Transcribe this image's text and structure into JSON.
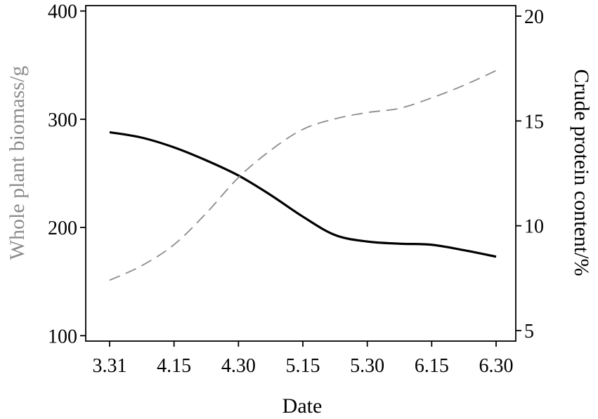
{
  "chart_data": {
    "type": "line",
    "xlabel": "Date",
    "ylabel_left": "Whole plant biomass/g",
    "ylabel_right": "Crude protein content/%",
    "categories": [
      "3.31",
      "4.15",
      "4.30",
      "5.15",
      "5.30",
      "6.15",
      "6.30"
    ],
    "y_left": {
      "range": [
        95,
        405
      ],
      "ticks": [
        100,
        200,
        300,
        400
      ]
    },
    "y_right": {
      "range": [
        4.5,
        20.5
      ],
      "ticks": [
        5,
        10,
        15,
        20
      ]
    },
    "grid": false,
    "series": [
      {
        "axis": "left",
        "style": "solid",
        "color": "#000000",
        "x": [
          0,
          0.5,
          1,
          1.5,
          2,
          2.5,
          3,
          3.5,
          4,
          4.5,
          5,
          5.5,
          6
        ],
        "values": [
          288,
          283,
          274,
          262,
          248,
          230,
          210,
          193,
          187,
          185,
          184,
          179,
          173
        ]
      },
      {
        "axis": "right",
        "style": "dashed",
        "color": "#8c8c8c",
        "x": [
          0,
          0.5,
          1,
          1.5,
          2,
          2.5,
          3,
          3.5,
          4,
          4.5,
          5,
          5.5,
          6
        ],
        "values": [
          7.4,
          8.1,
          9.1,
          10.6,
          12.3,
          13.6,
          14.6,
          15.1,
          15.4,
          15.6,
          16.1,
          16.7,
          17.4
        ]
      }
    ]
  },
  "colors": {
    "left_axis_title": "#8c8c8c",
    "right_axis_title": "#000000",
    "axis": "#000000"
  }
}
